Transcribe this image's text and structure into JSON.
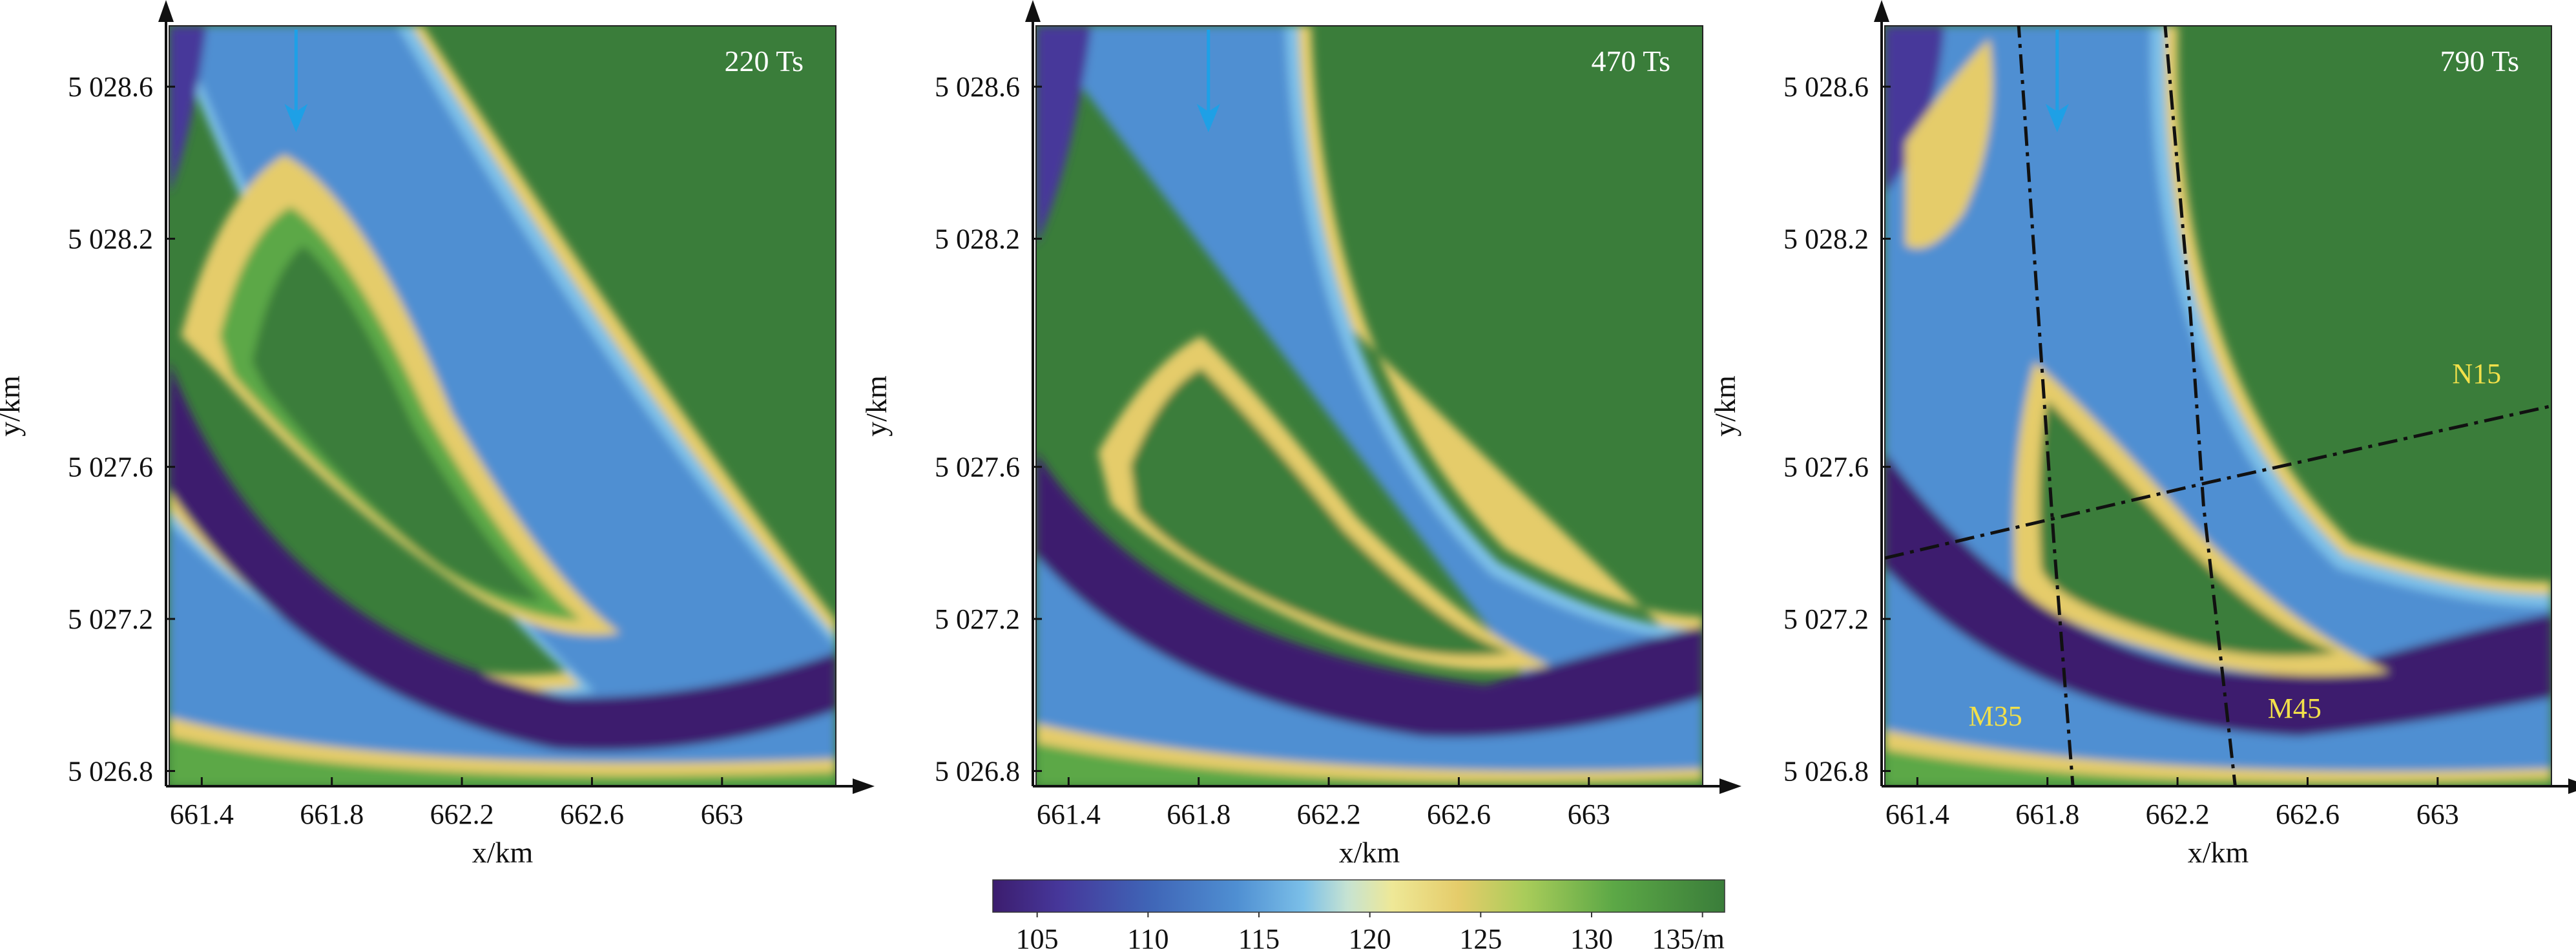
{
  "chart_data": {
    "type": "heatmap",
    "colorbar": {
      "stops": [
        {
          "value": 103,
          "color": "#3c1d6e"
        },
        {
          "value": 106,
          "color": "#46379a"
        },
        {
          "value": 110,
          "color": "#3f64b6"
        },
        {
          "value": 114,
          "color": "#4f8fd2"
        },
        {
          "value": 117,
          "color": "#7bbfe8"
        },
        {
          "value": 119,
          "color": "#c6e3d2"
        },
        {
          "value": 121,
          "color": "#eee897"
        },
        {
          "value": 124,
          "color": "#e5cc6a"
        },
        {
          "value": 127,
          "color": "#a9cc5a"
        },
        {
          "value": 131,
          "color": "#5ca846"
        },
        {
          "value": 136,
          "color": "#3a7d3a"
        }
      ],
      "range": [
        103,
        136
      ],
      "tick_values": [
        105,
        110,
        115,
        120,
        125,
        130,
        135
      ],
      "tick_labels": [
        "105",
        "110",
        "115",
        "120",
        "125",
        "130",
        "135/m"
      ]
    },
    "panels": [
      {
        "stamp": "220 Ts",
        "xlabel": "x/km",
        "ylabel": "y/km",
        "xlim": [
          661.3,
          663.35
        ],
        "ylim": [
          5026.76,
          5028.76
        ],
        "x_ticks": [
          661.4,
          661.8,
          662.2,
          662.6,
          663.0
        ],
        "x_tick_labels": [
          "661.4",
          "661.8",
          "662.2",
          "662.6",
          "663"
        ],
        "y_ticks": [
          5026.8,
          5027.2,
          5027.6,
          5028.2,
          5028.6
        ],
        "y_tick_labels": [
          "5 026.8",
          "5 027.2",
          "5 027.6",
          "5 028.2",
          "5 028.6"
        ],
        "flow_arrow": {
          "x": 661.69,
          "y_from": 5028.75,
          "y_to": 5028.48,
          "color": "#1ea0e6"
        },
        "section_lines": []
      },
      {
        "stamp": "470 Ts",
        "xlabel": "x/km",
        "ylabel": "y/km",
        "xlim": [
          661.3,
          663.35
        ],
        "ylim": [
          5026.76,
          5028.76
        ],
        "x_ticks": [
          661.4,
          661.8,
          662.2,
          662.6,
          663.0
        ],
        "x_tick_labels": [
          "661.4",
          "661.8",
          "662.2",
          "662.6",
          "663"
        ],
        "y_ticks": [
          5026.8,
          5027.2,
          5027.6,
          5028.2,
          5028.6
        ],
        "y_tick_labels": [
          "5 026.8",
          "5 027.2",
          "5 027.6",
          "5 028.2",
          "5 028.6"
        ],
        "flow_arrow": {
          "x": 661.83,
          "y_from": 5028.75,
          "y_to": 5028.48,
          "color": "#1ea0e6"
        },
        "section_lines": []
      },
      {
        "stamp": "790 Ts",
        "xlabel": "x/km",
        "ylabel": "y/km",
        "xlim": [
          661.3,
          663.35
        ],
        "ylim": [
          5026.76,
          5028.76
        ],
        "x_ticks": [
          661.4,
          661.8,
          662.2,
          662.6,
          663.0
        ],
        "x_tick_labels": [
          "661.4",
          "661.8",
          "662.2",
          "662.6",
          "663"
        ],
        "y_ticks": [
          5026.8,
          5027.2,
          5027.6,
          5028.2,
          5028.6
        ],
        "y_tick_labels": [
          "5 026.8",
          "5 027.2",
          "5 027.6",
          "5 028.2",
          "5 028.6"
        ],
        "flow_arrow": {
          "x": 661.83,
          "y_from": 5028.75,
          "y_to": 5028.48,
          "color": "#1ea0e6"
        },
        "section_lines": [
          {
            "name": "M35",
            "points": [
              [
                661.71,
                5028.78
              ],
              [
                661.78,
                5027.9
              ],
              [
                661.82,
                5027.4
              ],
              [
                661.88,
                5026.74
              ]
            ],
            "label_at": [
              661.64,
              5026.92
            ]
          },
          {
            "name": "M45",
            "points": [
              [
                662.16,
                5028.78
              ],
              [
                662.24,
                5028.0
              ],
              [
                662.28,
                5027.5
              ],
              [
                662.38,
                5026.74
              ]
            ],
            "label_at": [
              662.56,
              5026.94
            ]
          },
          {
            "name": "N15",
            "points": [
              [
                661.3,
                5027.36
              ],
              [
                661.75,
                5027.45
              ],
              [
                662.3,
                5027.56
              ],
              [
                663.35,
                5027.76
              ]
            ],
            "label_at": [
              663.12,
              5027.82
            ]
          }
        ]
      }
    ]
  }
}
